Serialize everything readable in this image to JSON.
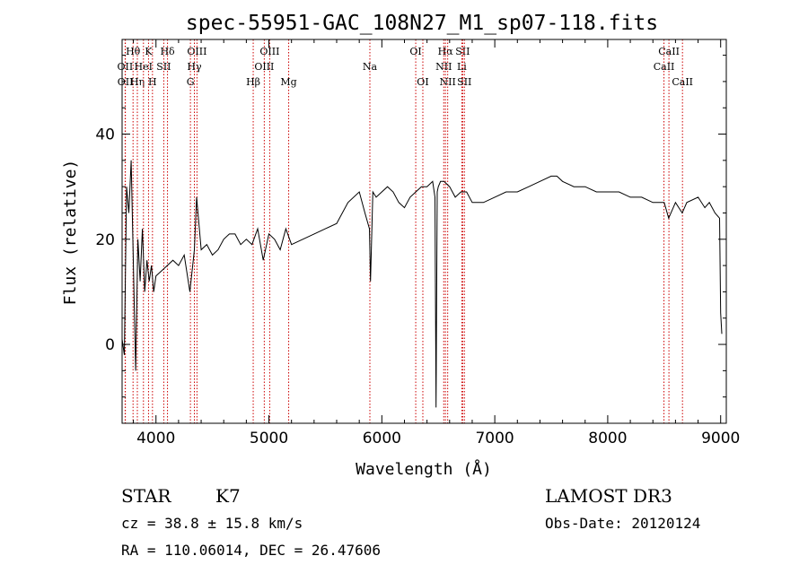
{
  "chart_data": {
    "type": "line",
    "title": "spec-55951-GAC_108N27_M1_sp07-118.fits",
    "xlabel": "Wavelength (Å)",
    "ylabel": "Flux (relative)",
    "xlim": [
      3700,
      9050
    ],
    "ylim": [
      -15,
      58
    ],
    "x_ticks": [
      4000,
      5000,
      6000,
      7000,
      8000,
      9000
    ],
    "y_ticks": [
      0,
      20,
      40
    ],
    "series": [
      {
        "name": "spectrum",
        "x": [
          3700,
          3720,
          3740,
          3760,
          3780,
          3800,
          3820,
          3840,
          3860,
          3880,
          3900,
          3920,
          3940,
          3960,
          3980,
          4000,
          4050,
          4100,
          4150,
          4200,
          4250,
          4300,
          4340,
          4360,
          4400,
          4450,
          4500,
          4550,
          4600,
          4650,
          4700,
          4750,
          4800,
          4850,
          4900,
          4950,
          5000,
          5050,
          5100,
          5150,
          5200,
          5300,
          5400,
          5500,
          5600,
          5700,
          5800,
          5850,
          5890,
          5900,
          5920,
          5950,
          6000,
          6050,
          6100,
          6150,
          6200,
          6250,
          6300,
          6350,
          6400,
          6450,
          6470,
          6480,
          6490,
          6500,
          6520,
          6550,
          6600,
          6650,
          6700,
          6750,
          6800,
          6900,
          7000,
          7100,
          7200,
          7300,
          7400,
          7500,
          7550,
          7600,
          7700,
          7800,
          7900,
          8000,
          8100,
          8200,
          8300,
          8400,
          8500,
          8540,
          8600,
          8660,
          8700,
          8800,
          8860,
          8900,
          8950,
          8990,
          9000,
          9010
        ],
        "y": [
          1,
          -2,
          30,
          25,
          35,
          15,
          -5,
          20,
          12,
          22,
          10,
          16,
          12,
          15,
          10,
          13,
          14,
          15,
          16,
          15,
          17,
          10,
          18,
          28,
          18,
          19,
          17,
          18,
          20,
          21,
          21,
          19,
          20,
          19,
          22,
          16,
          21,
          20,
          18,
          22,
          19,
          20,
          21,
          22,
          23,
          27,
          29,
          25,
          22,
          12,
          29,
          28,
          29,
          30,
          29,
          27,
          26,
          28,
          29,
          30,
          30,
          31,
          28,
          -12,
          29,
          30,
          31,
          31,
          30,
          28,
          29,
          29,
          27,
          27,
          28,
          29,
          29,
          30,
          31,
          32,
          32,
          31,
          30,
          30,
          29,
          29,
          29,
          28,
          28,
          27,
          27,
          24,
          27,
          25,
          27,
          28,
          26,
          27,
          25,
          24,
          6,
          2
        ]
      }
    ],
    "line_markers": [
      {
        "label": "Hθ",
        "x": 3797,
        "row": 1
      },
      {
        "label": "OII",
        "x": 3727,
        "row": 2
      },
      {
        "label": "OII",
        "x": 3729,
        "row": 3
      },
      {
        "label": "Hη",
        "x": 3835,
        "row": 3
      },
      {
        "label": "HeI",
        "x": 3889,
        "row": 2
      },
      {
        "label": "K",
        "x": 3934,
        "row": 1
      },
      {
        "label": "SII",
        "x": 4069,
        "row": 2
      },
      {
        "label": "H",
        "x": 3969,
        "row": 3
      },
      {
        "label": "Hδ",
        "x": 4102,
        "row": 1
      },
      {
        "label": "OIII",
        "x": 4363,
        "row": 1
      },
      {
        "label": "Hγ",
        "x": 4340,
        "row": 2
      },
      {
        "label": "G",
        "x": 4305,
        "row": 3
      },
      {
        "label": "OIII",
        "x": 5007,
        "row": 1
      },
      {
        "label": "OIII",
        "x": 4959,
        "row": 2
      },
      {
        "label": "Hβ",
        "x": 4861,
        "row": 3
      },
      {
        "label": "Mg",
        "x": 5175,
        "row": 3
      },
      {
        "label": "Na",
        "x": 5894,
        "row": 2
      },
      {
        "label": "OI",
        "x": 6300,
        "row": 1
      },
      {
        "label": "OI",
        "x": 6363,
        "row": 3
      },
      {
        "label": "Hα",
        "x": 6563,
        "row": 1
      },
      {
        "label": "SII",
        "x": 6716,
        "row": 1
      },
      {
        "label": "NII",
        "x": 6548,
        "row": 2
      },
      {
        "label": "Li",
        "x": 6708,
        "row": 2
      },
      {
        "label": "NII",
        "x": 6583,
        "row": 3
      },
      {
        "label": "SII",
        "x": 6731,
        "row": 3
      },
      {
        "label": "CaII",
        "x": 8542,
        "row": 1
      },
      {
        "label": "CaII",
        "x": 8498,
        "row": 2
      },
      {
        "label": "CaII",
        "x": 8662,
        "row": 3
      }
    ]
  },
  "info": {
    "object_class": "STAR",
    "subclass": "K7",
    "survey": "LAMOST DR3",
    "cz": "cz = 38.8 ± 15.8 km/s",
    "obs_date": "Obs-Date: 20120124",
    "coords": "RA = 110.06014, DEC =  26.47606"
  },
  "colors": {
    "spectrum": "#000000",
    "marker": "#cc0000"
  }
}
